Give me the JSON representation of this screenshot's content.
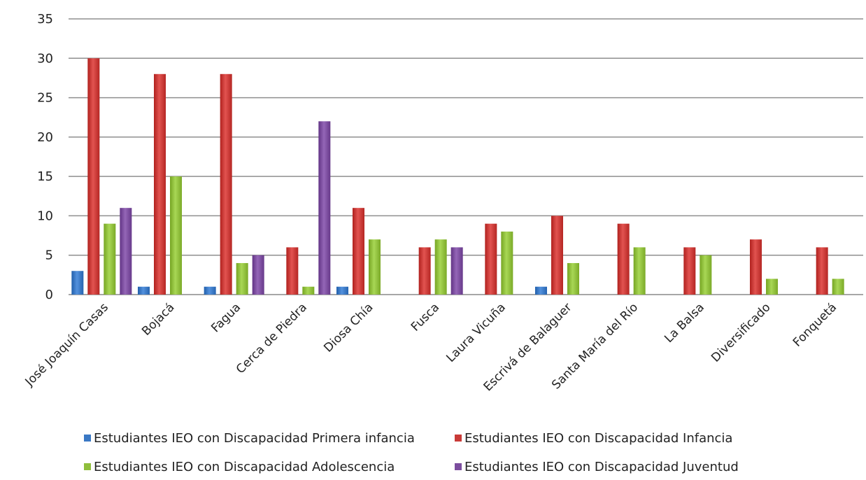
{
  "chart_data": {
    "type": "bar",
    "categories": [
      "José Joaquín Casas",
      "Bojacá",
      "Fagua",
      "Cerca de Piedra",
      "Diosa Chía",
      "Fusca",
      "Laura Vicuña",
      "Escrivá de Balaguer",
      "Santa María del Río",
      "La Balsa",
      "Diversificado",
      "Fonquetá"
    ],
    "series": [
      {
        "name": "Estudiantes IEO con Discapacidad Primera infancia",
        "color": "#3a78c4",
        "values": [
          3,
          1,
          1,
          0,
          1,
          0,
          0,
          1,
          0,
          0,
          0,
          0
        ]
      },
      {
        "name": "Estudiantes IEO con Discapacidad Infancia",
        "color": "#c93a37",
        "values": [
          30,
          28,
          28,
          6,
          11,
          6,
          9,
          10,
          9,
          6,
          7,
          6
        ]
      },
      {
        "name": "Estudiantes IEO con Discapacidad Adolescencia",
        "color": "#8fbe3c",
        "values": [
          9,
          15,
          4,
          1,
          7,
          7,
          8,
          4,
          6,
          5,
          2,
          2
        ]
      },
      {
        "name": "Estudiantes IEO con Discapacidad Juventud",
        "color": "#7b4d9e",
        "values": [
          11,
          0,
          5,
          22,
          0,
          6,
          0,
          0,
          0,
          0,
          0,
          0
        ]
      }
    ],
    "ylim": [
      0,
      35
    ],
    "yticks": [
      0,
      5,
      10,
      15,
      20,
      25,
      30,
      35
    ],
    "grid": true,
    "legend_position": "bottom"
  }
}
